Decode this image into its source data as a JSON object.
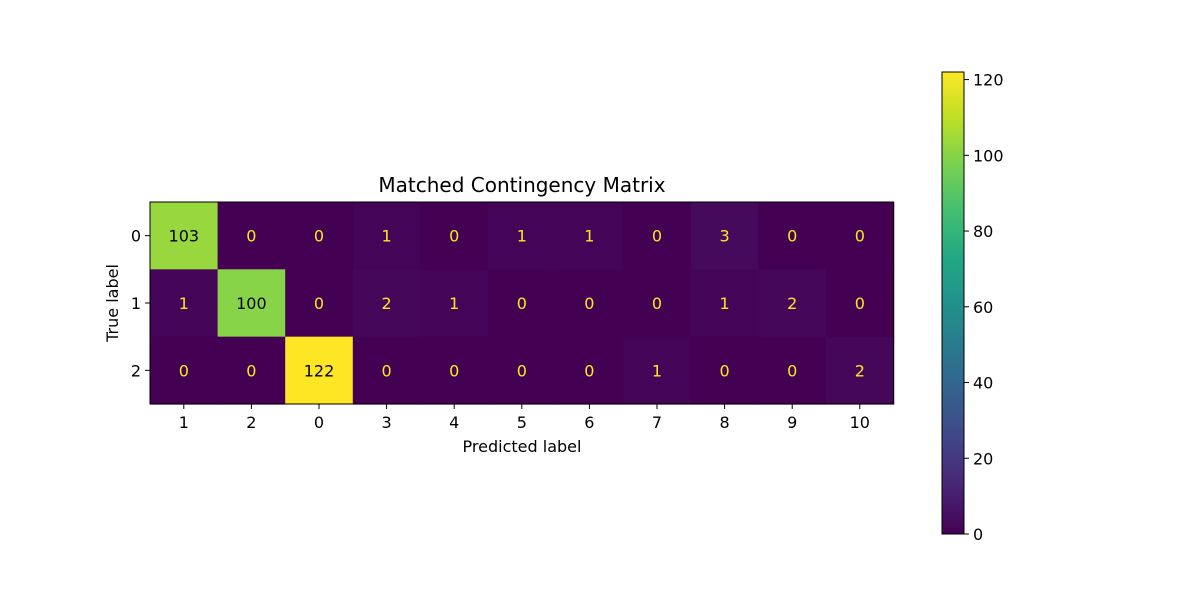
{
  "chart_data": {
    "type": "heatmap",
    "title": "Matched Contingency Matrix",
    "xlabel": "Predicted label",
    "ylabel": "True label",
    "x_categories": [
      "1",
      "2",
      "0",
      "3",
      "4",
      "5",
      "6",
      "7",
      "8",
      "9",
      "10"
    ],
    "y_categories": [
      "0",
      "1",
      "2"
    ],
    "values": [
      [
        103,
        0,
        0,
        1,
        0,
        1,
        1,
        0,
        3,
        0,
        0
      ],
      [
        1,
        100,
        0,
        2,
        1,
        0,
        0,
        0,
        1,
        2,
        0
      ],
      [
        0,
        0,
        122,
        0,
        0,
        0,
        0,
        1,
        0,
        0,
        2
      ]
    ],
    "colormap": "viridis",
    "colorbar": {
      "range": [
        0,
        122
      ],
      "ticks": [
        0,
        20,
        40,
        60,
        80,
        100,
        120
      ]
    },
    "text_colors": {
      "low": "#fde725",
      "high": "#000000"
    }
  }
}
